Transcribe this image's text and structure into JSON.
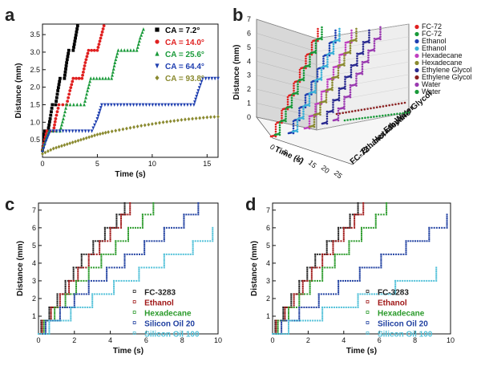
{
  "figure": {
    "panels": {
      "a": "a",
      "b": "b",
      "c": "c",
      "d": "d"
    }
  },
  "chart_data": [
    {
      "panel": "a",
      "type": "scatter",
      "xlabel": "Time (s)",
      "ylabel": "Distance (mm)",
      "xlim": [
        0,
        16
      ],
      "ylim": [
        0,
        3.8
      ],
      "xticks": [
        0,
        5,
        10,
        15
      ],
      "yticks": [
        0.5,
        1.0,
        1.5,
        2.0,
        2.5,
        3.0,
        3.5
      ],
      "legend_position": "top-right",
      "series": [
        {
          "name": "CA = 7.2°",
          "color": "#000000",
          "marker": "square",
          "points": [
            [
              0,
              0.2
            ],
            [
              0.1,
              0.4
            ],
            [
              0.2,
              0.75
            ],
            [
              0.5,
              0.75
            ],
            [
              0.7,
              1.1
            ],
            [
              0.9,
              1.5
            ],
            [
              1.2,
              1.5
            ],
            [
              1.4,
              1.9
            ],
            [
              1.6,
              2.25
            ],
            [
              2.0,
              2.25
            ],
            [
              2.2,
              2.7
            ],
            [
              2.4,
              3.05
            ],
            [
              2.8,
              3.05
            ],
            [
              3.0,
              3.4
            ],
            [
              3.2,
              3.75
            ]
          ]
        },
        {
          "name": "CA = 14.0°",
          "color": "#e02020",
          "marker": "circle",
          "points": [
            [
              0,
              0.2
            ],
            [
              0.2,
              0.5
            ],
            [
              0.4,
              0.75
            ],
            [
              1.0,
              0.75
            ],
            [
              1.2,
              1.1
            ],
            [
              1.5,
              1.5
            ],
            [
              2.2,
              1.5
            ],
            [
              2.5,
              1.9
            ],
            [
              2.8,
              2.25
            ],
            [
              3.6,
              2.25
            ],
            [
              3.9,
              2.7
            ],
            [
              4.2,
              3.05
            ],
            [
              5.0,
              3.05
            ],
            [
              5.3,
              3.4
            ],
            [
              5.6,
              3.75
            ]
          ]
        },
        {
          "name": "CA = 25.6°",
          "color": "#1a9a3a",
          "marker": "triangle-up",
          "points": [
            [
              0,
              0.2
            ],
            [
              0.3,
              0.5
            ],
            [
              0.6,
              0.75
            ],
            [
              1.6,
              0.75
            ],
            [
              1.9,
              1.1
            ],
            [
              2.2,
              1.5
            ],
            [
              3.8,
              1.5
            ],
            [
              4.1,
              1.9
            ],
            [
              4.4,
              2.25
            ],
            [
              6.3,
              2.25
            ],
            [
              6.6,
              2.7
            ],
            [
              6.9,
              3.05
            ],
            [
              8.6,
              3.05
            ],
            [
              8.9,
              3.4
            ],
            [
              9.2,
              3.65
            ]
          ]
        },
        {
          "name": "CA = 64.4°",
          "color": "#1f3fb0",
          "marker": "triangle-down",
          "points": [
            [
              0,
              0.15
            ],
            [
              0.3,
              0.45
            ],
            [
              0.7,
              0.75
            ],
            [
              4.5,
              0.75
            ],
            [
              5.0,
              1.1
            ],
            [
              5.4,
              1.5
            ],
            [
              13.8,
              1.5
            ],
            [
              14.2,
              1.9
            ],
            [
              14.6,
              2.25
            ],
            [
              16,
              2.25
            ]
          ]
        },
        {
          "name": "CA = 93.8°",
          "color": "#8a8a30",
          "marker": "diamond",
          "points": [
            [
              0,
              0.1
            ],
            [
              1,
              0.25
            ],
            [
              2,
              0.35
            ],
            [
              3,
              0.45
            ],
            [
              4,
              0.55
            ],
            [
              5,
              0.65
            ],
            [
              6,
              0.72
            ],
            [
              7,
              0.78
            ],
            [
              8,
              0.84
            ],
            [
              9,
              0.9
            ],
            [
              10,
              0.95
            ],
            [
              11,
              1.0
            ],
            [
              12,
              1.04
            ],
            [
              13,
              1.08
            ],
            [
              14,
              1.11
            ],
            [
              15,
              1.14
            ],
            [
              16,
              1.16
            ]
          ]
        }
      ]
    },
    {
      "panel": "b",
      "type": "scatter",
      "xlabel": "Time (s)",
      "ylabel": "Distance (mm)",
      "zlabel_categories": [
        "FC-72",
        "Ethanol",
        "Hexadecane",
        "Ethylene Glycol",
        "Water"
      ],
      "zlim": [
        0,
        7
      ],
      "zticks": [
        0,
        1,
        2,
        3,
        4,
        5,
        6,
        7
      ],
      "xticks": [
        0,
        5,
        10,
        15,
        20,
        25
      ],
      "legend_position": "right",
      "series": [
        {
          "name": "FC-72",
          "color": "#e02020"
        },
        {
          "name": "FC-72",
          "color": "#1a9a3a"
        },
        {
          "name": "Ethanol",
          "color": "#1f3fb0"
        },
        {
          "name": "Ethanol",
          "color": "#3ab0d8"
        },
        {
          "name": "Hexadecane",
          "color": "#c040c0"
        },
        {
          "name": "Hexadecane",
          "color": "#8a8a30"
        },
        {
          "name": "Ethylene Glycol",
          "color": "#2a2a90"
        },
        {
          "name": "Ethylene Glycol",
          "color": "#8a2020"
        },
        {
          "name": "Water",
          "color": "#9a3ab0"
        },
        {
          "name": "Water",
          "color": "#1a9a3a"
        }
      ]
    },
    {
      "panel": "c",
      "type": "scatter",
      "xlabel": "Time (s)",
      "ylabel": "Distance (mm)",
      "xlim": [
        0,
        10
      ],
      "ylim": [
        0,
        7.4
      ],
      "xticks": [
        0,
        2,
        4,
        6,
        8,
        10
      ],
      "yticks": [
        1,
        2,
        3,
        4,
        5,
        6,
        7
      ],
      "legend_position": "bottom-right",
      "series": [
        {
          "name": "FC-3283",
          "color": "#222222",
          "steps": [
            [
              0.15,
              0.75
            ],
            [
              0.6,
              1.5
            ],
            [
              1.05,
              2.25
            ],
            [
              1.5,
              3.0
            ],
            [
              1.95,
              3.75
            ],
            [
              2.4,
              4.5
            ],
            [
              3.05,
              5.25
            ],
            [
              3.7,
              6.0
            ],
            [
              4.35,
              6.75
            ],
            [
              4.8,
              7.4
            ]
          ]
        },
        {
          "name": "Ethanol",
          "color": "#a01818",
          "steps": [
            [
              0.2,
              0.75
            ],
            [
              0.7,
              1.5
            ],
            [
              1.2,
              2.25
            ],
            [
              1.7,
              3.0
            ],
            [
              2.2,
              3.75
            ],
            [
              2.8,
              4.5
            ],
            [
              3.4,
              5.25
            ],
            [
              4.0,
              6.0
            ],
            [
              4.6,
              6.75
            ],
            [
              5.1,
              7.4
            ]
          ]
        },
        {
          "name": "Hexadecane",
          "color": "#2a9a2a",
          "steps": [
            [
              0.3,
              0.75
            ],
            [
              0.9,
              1.5
            ],
            [
              1.5,
              2.25
            ],
            [
              2.1,
              3.0
            ],
            [
              2.8,
              3.75
            ],
            [
              3.5,
              4.5
            ],
            [
              4.3,
              5.25
            ],
            [
              5.0,
              6.0
            ],
            [
              5.8,
              6.75
            ],
            [
              6.4,
              7.4
            ]
          ]
        },
        {
          "name": "Silicon Oil 20",
          "color": "#1f3fa0",
          "steps": [
            [
              0.4,
              0.75
            ],
            [
              1.2,
              1.5
            ],
            [
              2.0,
              2.25
            ],
            [
              2.8,
              3.0
            ],
            [
              3.8,
              3.75
            ],
            [
              4.8,
              4.5
            ],
            [
              5.9,
              5.25
            ],
            [
              7.0,
              6.0
            ],
            [
              8.1,
              6.75
            ],
            [
              8.9,
              7.4
            ]
          ]
        },
        {
          "name": "Silicon Oil 100",
          "color": "#50c0d8",
          "steps": [
            [
              0.6,
              0.75
            ],
            [
              1.8,
              1.5
            ],
            [
              3.0,
              2.25
            ],
            [
              4.2,
              3.0
            ],
            [
              5.6,
              3.75
            ],
            [
              7.0,
              4.5
            ],
            [
              8.6,
              5.25
            ],
            [
              9.7,
              6.0
            ]
          ]
        }
      ]
    },
    {
      "panel": "d",
      "type": "scatter",
      "xlabel": "Time (s)",
      "ylabel": "Distance (mm)",
      "xlim": [
        0,
        10
      ],
      "ylim": [
        0,
        7.4
      ],
      "xticks": [
        0,
        2,
        4,
        6,
        8,
        10
      ],
      "yticks": [
        1,
        2,
        3,
        4,
        5,
        6,
        7
      ],
      "legend_position": "bottom-right",
      "series": [
        {
          "name": "FC-3283",
          "color": "#222222",
          "steps": [
            [
              0.15,
              0.75
            ],
            [
              0.6,
              1.5
            ],
            [
              1.05,
              2.25
            ],
            [
              1.5,
              3.0
            ],
            [
              1.95,
              3.75
            ],
            [
              2.4,
              4.5
            ],
            [
              3.05,
              5.25
            ],
            [
              3.7,
              6.0
            ],
            [
              4.35,
              6.75
            ],
            [
              4.8,
              7.4
            ]
          ]
        },
        {
          "name": "Ethanol",
          "color": "#a01818",
          "steps": [
            [
              0.2,
              0.75
            ],
            [
              0.7,
              1.5
            ],
            [
              1.2,
              2.25
            ],
            [
              1.7,
              3.0
            ],
            [
              2.2,
              3.75
            ],
            [
              2.8,
              4.5
            ],
            [
              3.4,
              5.25
            ],
            [
              4.0,
              6.0
            ],
            [
              4.6,
              6.75
            ],
            [
              5.1,
              7.4
            ]
          ]
        },
        {
          "name": "Hexadecane",
          "color": "#2a9a2a",
          "steps": [
            [
              0.3,
              0.75
            ],
            [
              0.9,
              1.5
            ],
            [
              1.5,
              2.25
            ],
            [
              2.1,
              3.0
            ],
            [
              2.8,
              3.75
            ],
            [
              3.5,
              4.5
            ],
            [
              4.3,
              5.25
            ],
            [
              5.0,
              6.0
            ],
            [
              5.8,
              6.75
            ],
            [
              6.4,
              7.4
            ]
          ]
        },
        {
          "name": "Silicon Oil 20",
          "color": "#1f3fa0",
          "steps": [
            [
              0.5,
              0.75
            ],
            [
              1.5,
              1.5
            ],
            [
              2.6,
              2.25
            ],
            [
              3.7,
              3.0
            ],
            [
              4.9,
              3.75
            ],
            [
              6.1,
              4.5
            ],
            [
              7.5,
              5.25
            ],
            [
              8.8,
              6.0
            ],
            [
              9.8,
              6.75
            ]
          ]
        },
        {
          "name": "Silicon Oil 100",
          "color": "#50c0d8",
          "steps": [
            [
              0.9,
              0.75
            ],
            [
              2.8,
              1.5
            ],
            [
              4.8,
              2.25
            ],
            [
              6.9,
              3.0
            ],
            [
              9.2,
              3.75
            ]
          ]
        }
      ]
    }
  ]
}
